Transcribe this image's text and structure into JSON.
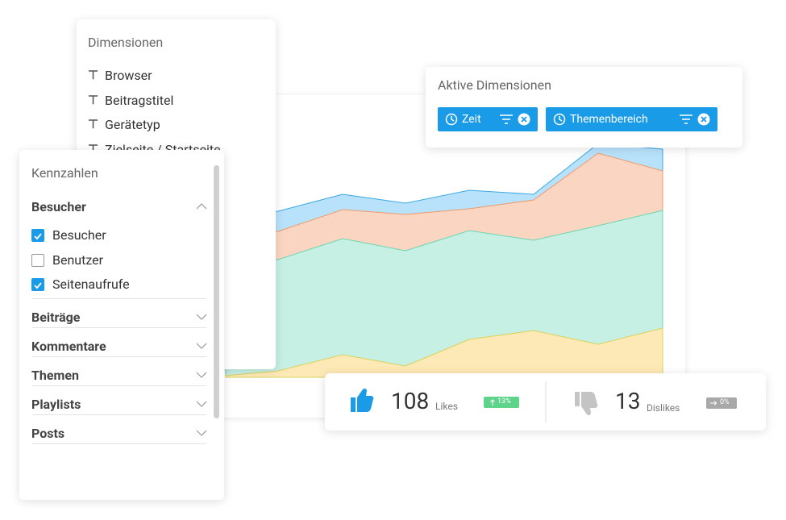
{
  "dimensions": {
    "title": "Dimensionen",
    "items": [
      "Browser",
      "Beitragstitel",
      "Gerätetyp",
      "Zielseite / Startseite"
    ]
  },
  "metrics": {
    "title": "Kennzahlen",
    "groups": [
      {
        "label": "Besucher",
        "options": [
          {
            "label": "Besucher",
            "checked": true
          },
          {
            "label": "Benutzer",
            "checked": false
          },
          {
            "label": "Seitenaufrufe",
            "checked": true
          }
        ]
      },
      {
        "label": "Beiträge"
      },
      {
        "label": "Kommentare"
      },
      {
        "label": "Themen"
      },
      {
        "label": "Playlists"
      },
      {
        "label": "Posts"
      }
    ]
  },
  "active_dimensions": {
    "title": "Aktive Dimensionen",
    "chips": [
      "Zeit",
      "Themenbereich"
    ]
  },
  "stats": [
    {
      "value": 108,
      "unit": "Likes",
      "change": "13%"
    },
    {
      "value": 13,
      "unit": "Dislikes",
      "change": "0%"
    }
  ]
}
